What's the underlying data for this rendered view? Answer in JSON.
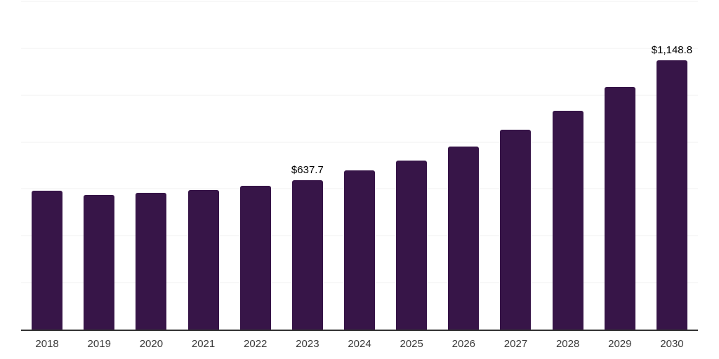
{
  "chart_data": {
    "type": "bar",
    "categories": [
      "2018",
      "2019",
      "2020",
      "2021",
      "2022",
      "2023",
      "2024",
      "2025",
      "2026",
      "2027",
      "2028",
      "2029",
      "2030"
    ],
    "values": [
      591,
      573,
      584,
      594,
      613,
      637.7,
      679,
      721,
      782,
      852,
      933,
      1034,
      1148.8
    ],
    "data_labels": [
      "",
      "",
      "",
      "",
      "",
      "$637.7",
      "",
      "",
      "",
      "",
      "",
      "",
      "$1,148.8"
    ],
    "title": "",
    "xlabel": "",
    "ylabel": "",
    "ylim": [
      0,
      1400
    ],
    "gridline_step": 200,
    "grid": true,
    "legend": "none",
    "colors": {
      "bar": "#371548",
      "gridline": "#f2f2f2",
      "axis": "#333333",
      "data_label": "#000000",
      "tick_label": "#3a3a3a",
      "background": "#ffffff"
    }
  }
}
